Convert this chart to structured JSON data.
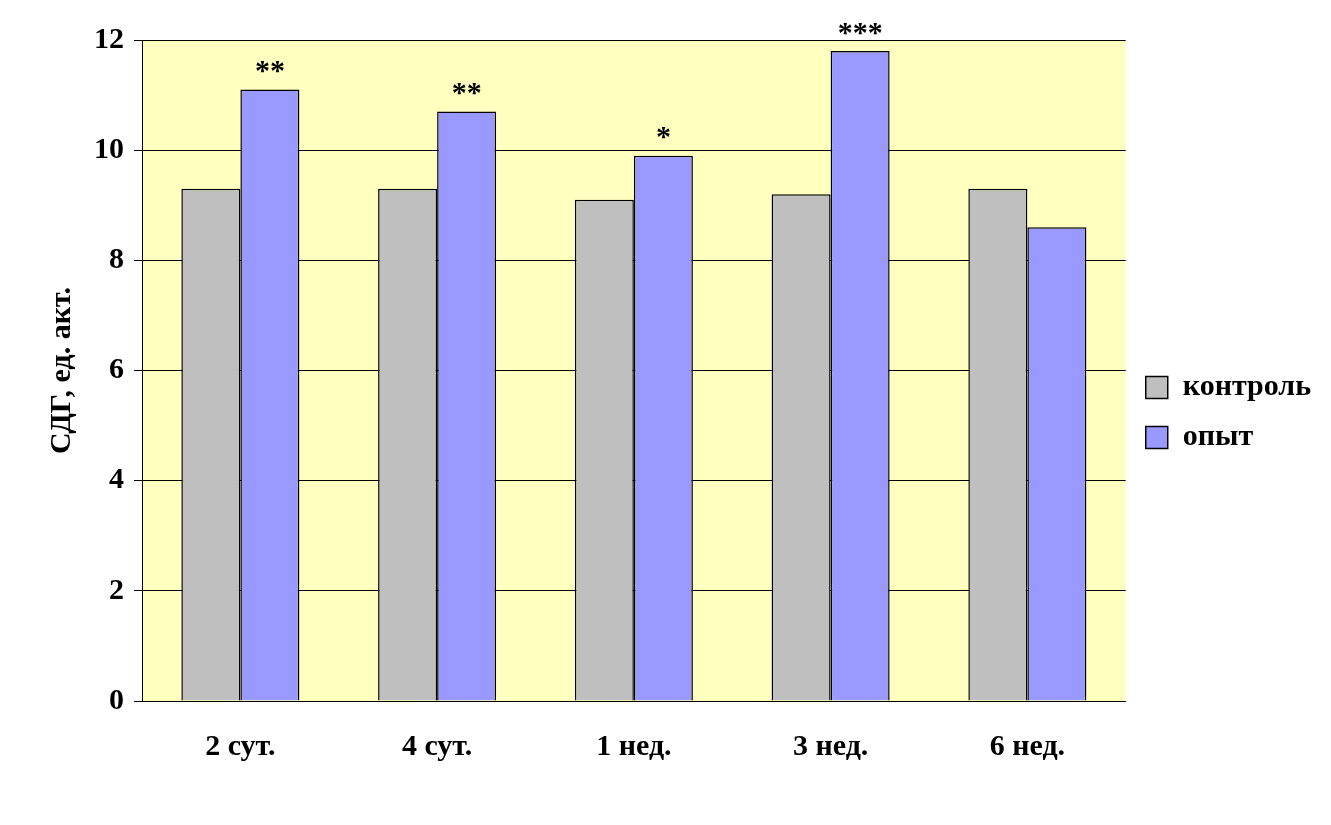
{
  "chart_data": {
    "type": "bar",
    "ylabel": "СДГ, ед. акт.",
    "categories": [
      "2 сут.",
      "4 сут.",
      "1 нед.",
      "3 нед.",
      "6 нед."
    ],
    "series": [
      {
        "name": "контроль",
        "color": "#bfbfbf",
        "values": [
          9.3,
          9.3,
          9.1,
          9.2,
          9.3
        ]
      },
      {
        "name": "опыт",
        "color": "#9999ff",
        "values": [
          11.1,
          10.7,
          9.9,
          11.8,
          8.6
        ]
      }
    ],
    "ylim": [
      0,
      12
    ],
    "yticks": [
      0,
      2,
      4,
      6,
      8,
      10,
      12
    ],
    "grid": "y",
    "legend": "right",
    "annotations": [
      {
        "text": "**",
        "x": "2 сут.",
        "y": 11.1
      },
      {
        "text": "**",
        "x": "4 сут.",
        "y": 10.7
      },
      {
        "text": "*",
        "x": "1 нед.",
        "y": 9.9
      },
      {
        "text": "***",
        "x": "3 нед.",
        "y": 11.8
      }
    ]
  }
}
